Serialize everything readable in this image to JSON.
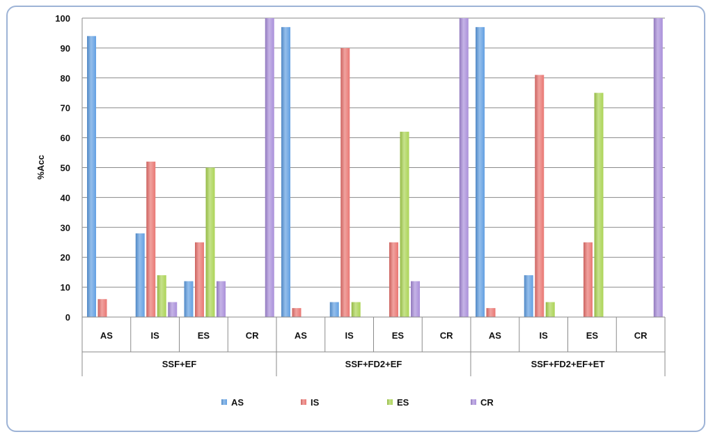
{
  "chart_data": {
    "type": "bar",
    "ylabel": "%Acc",
    "xlabel": "",
    "ylim": [
      0,
      100
    ],
    "yticks": [
      0,
      10,
      20,
      30,
      40,
      50,
      60,
      70,
      80,
      90,
      100
    ],
    "grid": true,
    "legend_position": "bottom",
    "groups": [
      "SSF+EF",
      "SSF+FD2+EF",
      "SSF+FD2+EF+ET"
    ],
    "categories": [
      "AS",
      "IS",
      "ES",
      "CR"
    ],
    "series": [
      {
        "name": "AS",
        "color": "#5b9be0",
        "values": [
          [
            94,
            28,
            12,
            0
          ],
          [
            97,
            5,
            0,
            0
          ],
          [
            97,
            14,
            0,
            0
          ]
        ]
      },
      {
        "name": "IS",
        "color": "#e8706c",
        "values": [
          [
            6,
            52,
            25,
            0
          ],
          [
            3,
            90,
            25,
            0
          ],
          [
            3,
            81,
            25,
            0
          ]
        ]
      },
      {
        "name": "ES",
        "color": "#a8d24e",
        "values": [
          [
            0,
            14,
            50,
            0
          ],
          [
            0,
            5,
            62,
            0
          ],
          [
            0,
            5,
            75,
            0
          ]
        ]
      },
      {
        "name": "CR",
        "color": "#a68ad8",
        "values": [
          [
            0,
            5,
            12,
            100
          ],
          [
            0,
            0,
            12,
            100
          ],
          [
            0,
            0,
            0,
            100
          ]
        ]
      }
    ]
  }
}
